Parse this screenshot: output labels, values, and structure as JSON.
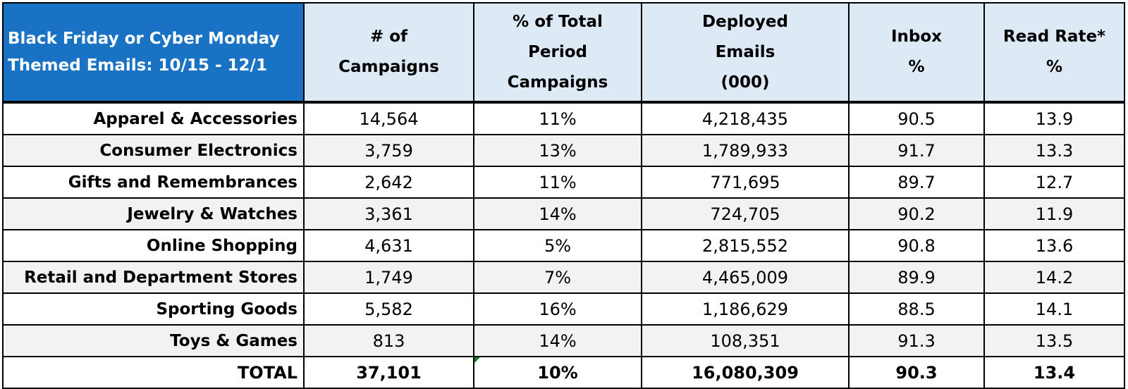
{
  "table": {
    "title_lines": [
      "Black Friday or Cyber Monday",
      "Themed Emails: 10/15 - 12/1"
    ],
    "headers": [
      [
        "# of",
        "Campaigns"
      ],
      [
        "% of Total",
        "Period",
        "Campaigns"
      ],
      [
        "Deployed",
        "Emails",
        "(000)"
      ],
      [
        "Inbox",
        "%"
      ],
      [
        "Read Rate*",
        "%"
      ]
    ],
    "rows": [
      {
        "category": "Apparel & Accessories",
        "campaigns": "14,564",
        "pct_total": "11%",
        "deployed": "4,218,435",
        "inbox": "90.5",
        "read_rate": "13.9"
      },
      {
        "category": "Consumer Electronics",
        "campaigns": "3,759",
        "pct_total": "13%",
        "deployed": "1,789,933",
        "inbox": "91.7",
        "read_rate": "13.3"
      },
      {
        "category": "Gifts and Remembrances",
        "campaigns": "2,642",
        "pct_total": "11%",
        "deployed": "771,695",
        "inbox": "89.7",
        "read_rate": "12.7"
      },
      {
        "category": "Jewelry & Watches",
        "campaigns": "3,361",
        "pct_total": "14%",
        "deployed": "724,705",
        "inbox": "90.2",
        "read_rate": "11.9"
      },
      {
        "category": "Online Shopping",
        "campaigns": "4,631",
        "pct_total": "5%",
        "deployed": "2,815,552",
        "inbox": "90.8",
        "read_rate": "13.6"
      },
      {
        "category": "Retail and Department Stores",
        "campaigns": "1,749",
        "pct_total": "7%",
        "deployed": "4,465,009",
        "inbox": "89.9",
        "read_rate": "14.2"
      },
      {
        "category": "Sporting Goods",
        "campaigns": "5,582",
        "pct_total": "16%",
        "deployed": "1,186,629",
        "inbox": "88.5",
        "read_rate": "14.1"
      },
      {
        "category": "Toys & Games",
        "campaigns": "813",
        "pct_total": "14%",
        "deployed": "108,351",
        "inbox": "91.3",
        "read_rate": "13.5"
      }
    ],
    "total": {
      "category": "TOTAL",
      "campaigns": "37,101",
      "pct_total": "10%",
      "deployed": "16,080,309",
      "inbox": "90.3",
      "read_rate": "13.4"
    }
  },
  "colors": {
    "title_background": "#1a72c4",
    "header_background": "#dde9f5",
    "alt_row_background": "#f2f2f2",
    "error_indicator": "#1b7f1b"
  },
  "icons": [
    "error-indicator-triangle-icon"
  ]
}
